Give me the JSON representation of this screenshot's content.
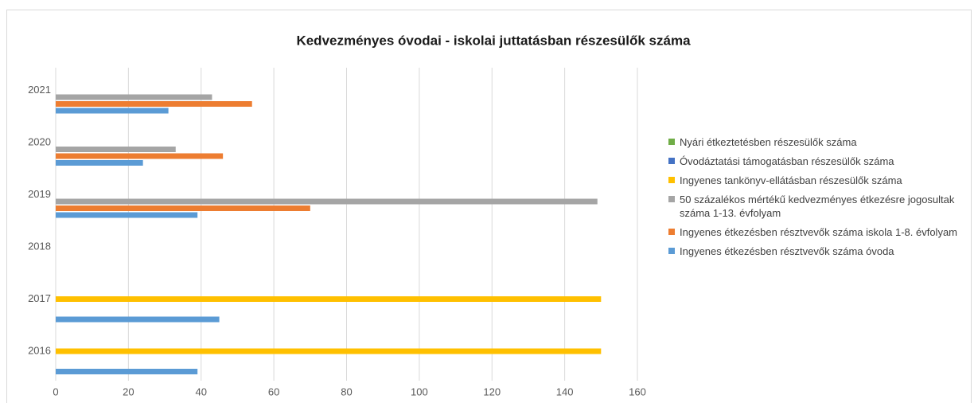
{
  "chart_data": {
    "type": "barh",
    "title": "Kedvezményes óvodai - iskolai juttatásban részesülők száma",
    "categories": [
      "2016",
      "2017",
      "2018",
      "2019",
      "2020",
      "2021"
    ],
    "series": [
      {
        "name": "Ingyenes étkezésben résztvevők száma óvoda",
        "color": "#5b9bd5",
        "values": [
          39,
          45,
          null,
          39,
          24,
          31
        ]
      },
      {
        "name": "Ingyenes étkezésben résztvevők száma iskola 1-8. évfolyam",
        "color": "#ed7d31",
        "values": [
          null,
          null,
          null,
          70,
          46,
          54
        ]
      },
      {
        "name": "50 százalékos mértékű kedvezményes étkezésre jogosultak száma 1-13. évfolyam",
        "color": "#a5a5a5",
        "values": [
          null,
          null,
          null,
          149,
          33,
          43
        ]
      },
      {
        "name": "Ingyenes tankönyv-ellátásban részesülők száma",
        "color": "#ffc000",
        "values": [
          150,
          150,
          null,
          null,
          null,
          null
        ]
      },
      {
        "name": "Óvodáztatási támogatásban részesülők száma",
        "color": "#4472c4",
        "values": [
          null,
          null,
          null,
          null,
          null,
          null
        ]
      },
      {
        "name": "Nyári étkeztetésben részesülők száma",
        "color": "#70ad47",
        "values": [
          null,
          null,
          null,
          null,
          null,
          null
        ]
      }
    ],
    "xlim": [
      0,
      160
    ],
    "xticks": [
      0,
      20,
      40,
      60,
      80,
      100,
      120,
      140,
      160
    ],
    "grid": true,
    "legend": "right"
  }
}
